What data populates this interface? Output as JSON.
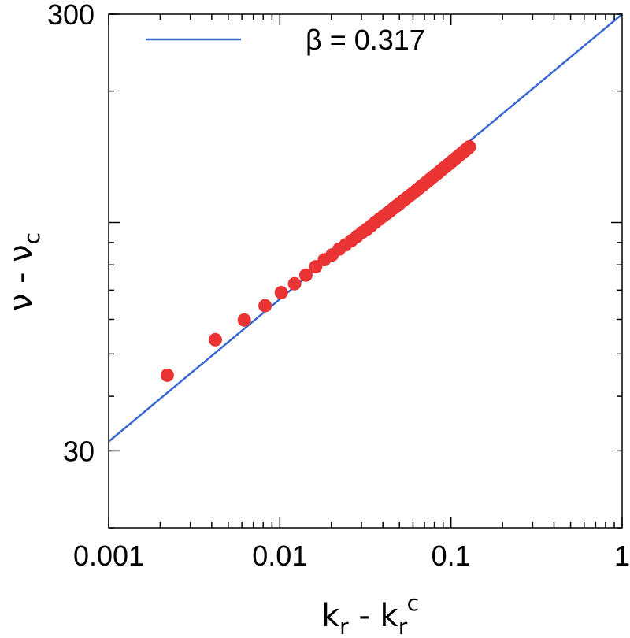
{
  "chart_data": {
    "type": "line",
    "xscale": "log",
    "yscale": "log",
    "xlim": [
      0.001,
      1
    ],
    "ylim": [
      20,
      300
    ],
    "xticks": [
      {
        "value": 0.001,
        "label": "0.001"
      },
      {
        "value": 0.01,
        "label": "0.01"
      },
      {
        "value": 0.1,
        "label": "0.1"
      },
      {
        "value": 1,
        "label": "1"
      }
    ],
    "yticks": [
      {
        "value": 30,
        "label": "30"
      },
      {
        "value": 300,
        "label": "300"
      }
    ],
    "xlabel": {
      "main": "k",
      "sub1": "r",
      "mid": " - k",
      "sub2": "r",
      "sup": "c"
    },
    "ylabel": {
      "main": "ν - ν",
      "sub": "c"
    },
    "grid": false,
    "legend_position": "top-left",
    "series": [
      {
        "name": "β = 0.317",
        "kind": "line",
        "color": "#3a66d4",
        "points": [
          [
            0.001,
            31.5
          ],
          [
            1,
            300
          ]
        ]
      },
      {
        "name": "",
        "kind": "points",
        "color": "#ea3434",
        "x": [
          0.0022,
          0.0042,
          0.0062,
          0.0082,
          0.0102,
          0.0122,
          0.0142,
          0.0162,
          0.0182,
          0.0202,
          0.0222,
          0.0242,
          0.0262,
          0.0282,
          0.0302,
          0.0322,
          0.0342,
          0.0362,
          0.0382,
          0.0402,
          0.0422,
          0.0442,
          0.0462,
          0.0482,
          0.0502,
          0.0522,
          0.0542,
          0.0562,
          0.0582,
          0.0602,
          0.0622,
          0.0642,
          0.0662,
          0.0682,
          0.0702,
          0.0722,
          0.0742,
          0.0762,
          0.0782,
          0.0802,
          0.0822,
          0.0842,
          0.0862,
          0.0882,
          0.0902,
          0.0922,
          0.0942,
          0.0962,
          0.0982,
          0.1002,
          0.1022,
          0.1042,
          0.1062,
          0.1082,
          0.1102,
          0.1122,
          0.1142,
          0.1162,
          0.1182,
          0.1202,
          0.1222,
          0.1242,
          0.1262,
          0.1282
        ],
        "y": [
          44.7,
          53.9,
          59.8,
          64.5,
          69.1,
          72.4,
          75.8,
          79.2,
          82.2,
          84.3,
          86.9,
          88.9,
          90.9,
          92.9,
          94.9,
          96.5,
          98.3,
          100.2,
          101.8,
          103.4,
          104.9,
          106.3,
          107.8,
          109.2,
          110.6,
          111.9,
          113.2,
          114.5,
          115.7,
          116.9,
          118.1,
          119.3,
          120.5,
          121.6,
          122.7,
          123.8,
          124.9,
          126.0,
          127.0,
          128.0,
          129.0,
          130.0,
          131.0,
          132.0,
          133.0,
          133.9,
          134.8,
          135.7,
          136.6,
          137.5,
          138.4,
          139.3,
          140.1,
          141.0,
          141.8,
          142.7,
          143.5,
          144.3,
          145.1,
          145.9,
          146.7,
          147.5,
          148.3,
          149.0
        ]
      }
    ]
  }
}
